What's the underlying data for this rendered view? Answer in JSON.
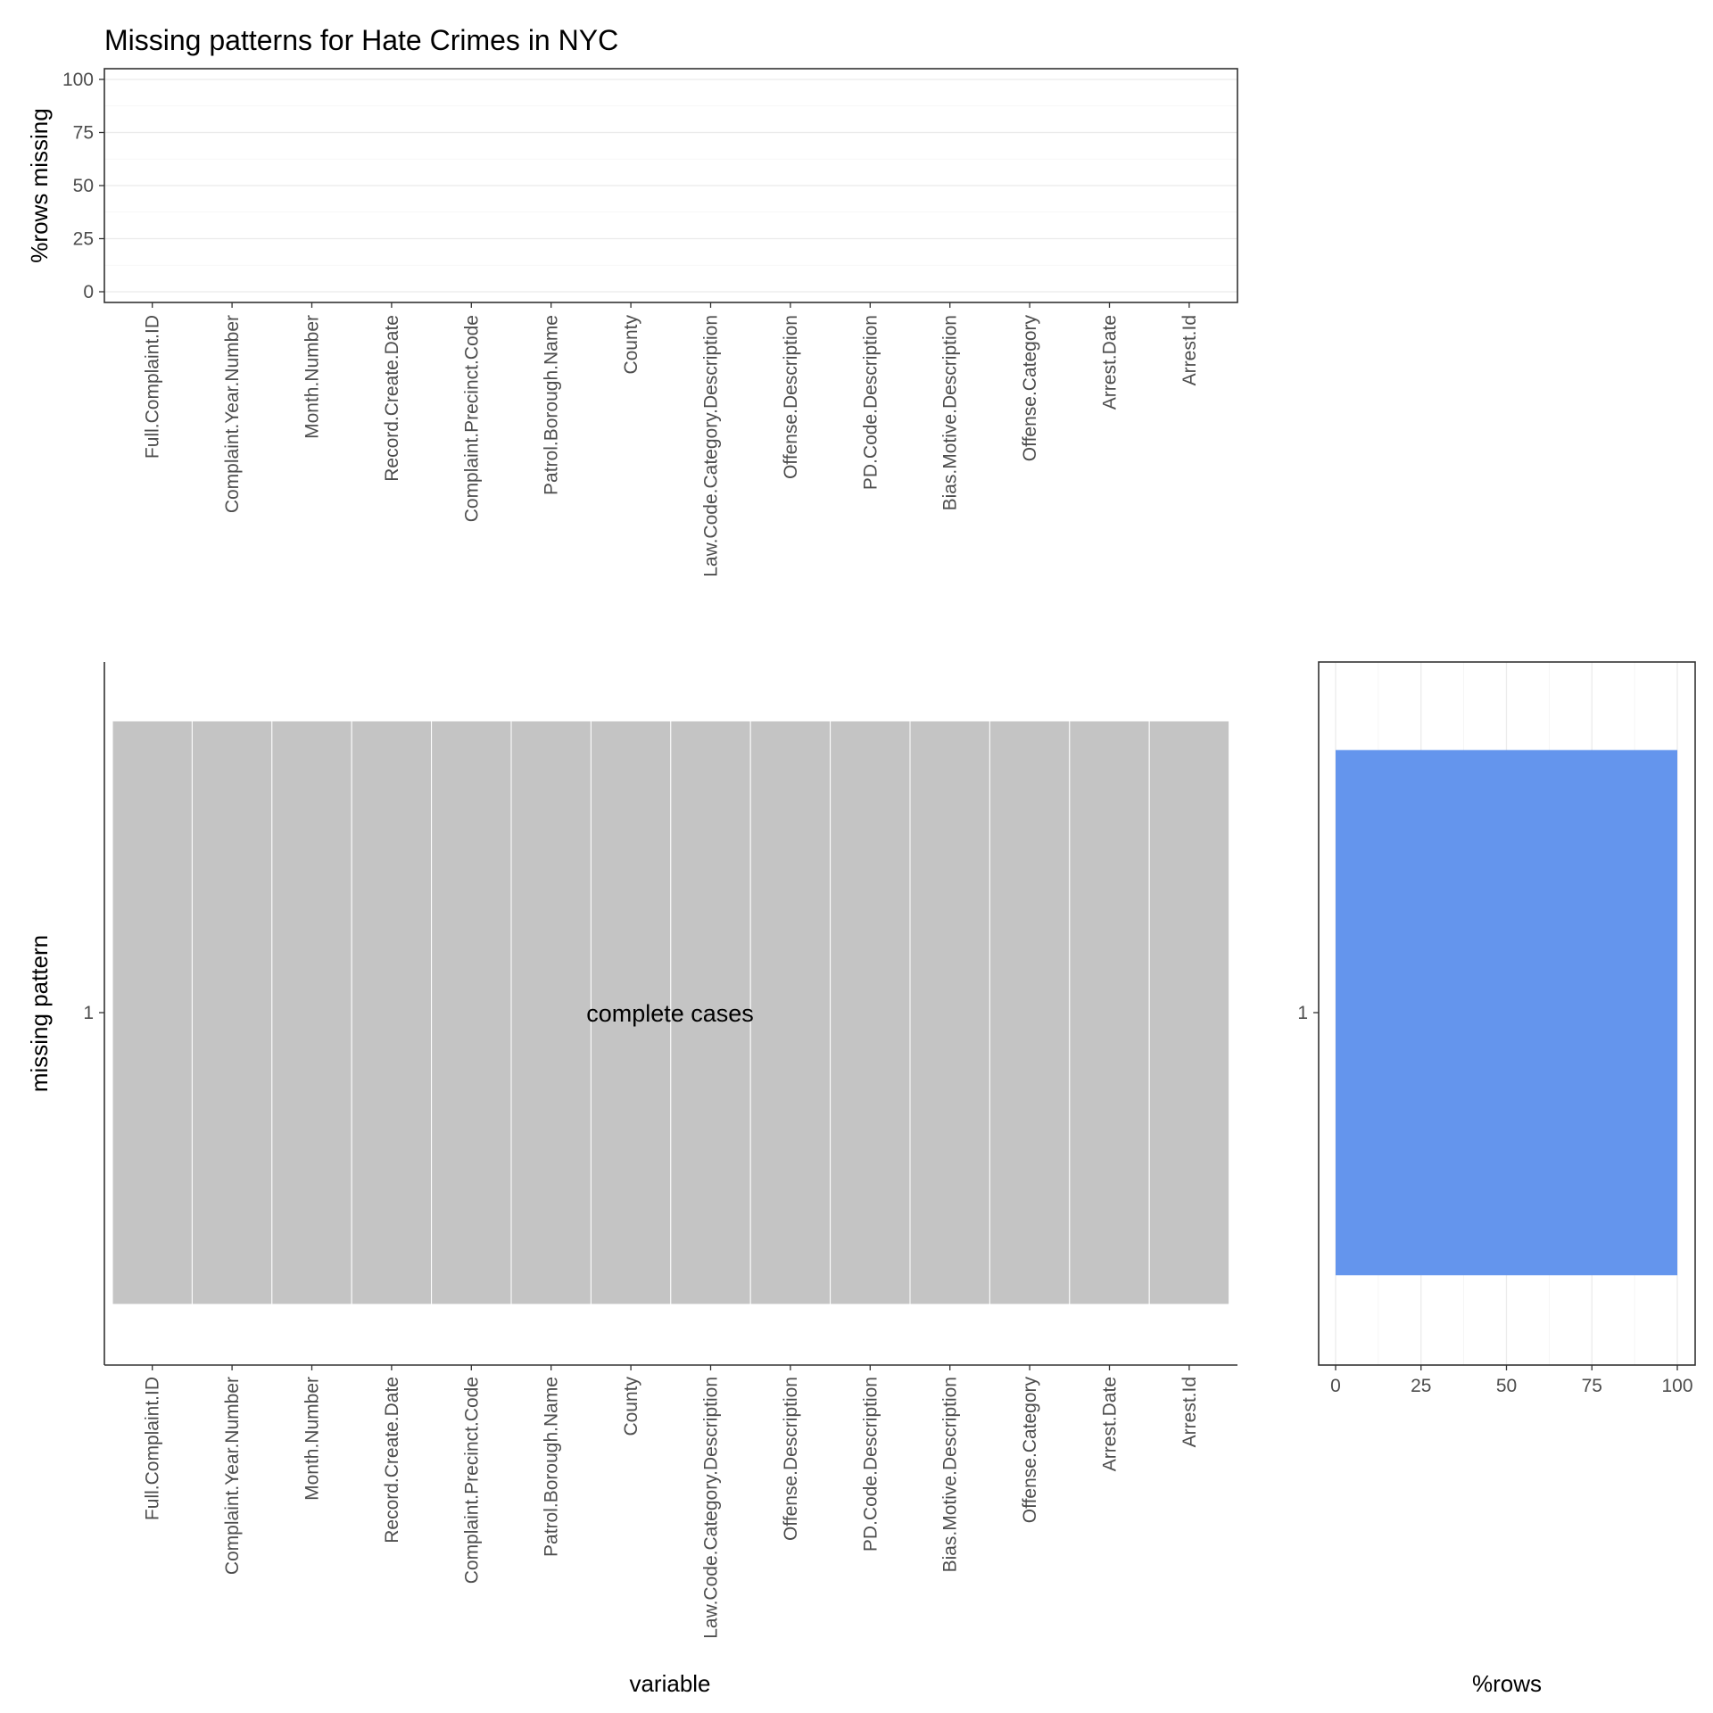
{
  "chart_data": [
    {
      "id": "top",
      "type": "bar",
      "title": "Missing patterns for Hate Crimes in NYC",
      "ylabel": "%rows missing",
      "xlabel": "",
      "ylim": [
        0,
        100
      ],
      "yticks": [
        0,
        25,
        50,
        75,
        100
      ],
      "grid": true,
      "categories": [
        "Full.Complaint.ID",
        "Complaint.Year.Number",
        "Month.Number",
        "Record.Create.Date",
        "Complaint.Precinct.Code",
        "Patrol.Borough.Name",
        "County",
        "Law.Code.Category.Description",
        "Offense.Description",
        "PD.Code.Description",
        "Bias.Motive.Description",
        "Offense.Category",
        "Arrest.Date",
        "Arrest.Id"
      ],
      "values": [
        0,
        0,
        0,
        0,
        0,
        0,
        0,
        0,
        0,
        0,
        0,
        0,
        0,
        0
      ]
    },
    {
      "id": "main",
      "type": "heatmap",
      "xlabel": "variable",
      "ylabel": "missing pattern",
      "yticks": [
        "1"
      ],
      "categories": [
        "Full.Complaint.ID",
        "Complaint.Year.Number",
        "Month.Number",
        "Record.Create.Date",
        "Complaint.Precinct.Code",
        "Patrol.Borough.Name",
        "County",
        "Law.Code.Category.Description",
        "Offense.Description",
        "PD.Code.Description",
        "Bias.Motive.Description",
        "Offense.Category",
        "Arrest.Date",
        "Arrest.Id"
      ],
      "patterns": [
        {
          "pattern": "1",
          "missing": [
            false,
            false,
            false,
            false,
            false,
            false,
            false,
            false,
            false,
            false,
            false,
            false,
            false,
            false
          ],
          "label": "complete cases"
        }
      ],
      "colors": {
        "present": "#c4c4c4"
      }
    },
    {
      "id": "right",
      "type": "bar",
      "orientation": "horizontal",
      "xlabel": "%rows",
      "ylabel": "",
      "xlim": [
        0,
        100
      ],
      "xticks": [
        0,
        25,
        50,
        75,
        100
      ],
      "grid": true,
      "categories": [
        "1"
      ],
      "values": [
        100
      ],
      "colors": {
        "bar": "#6495ed"
      }
    }
  ]
}
